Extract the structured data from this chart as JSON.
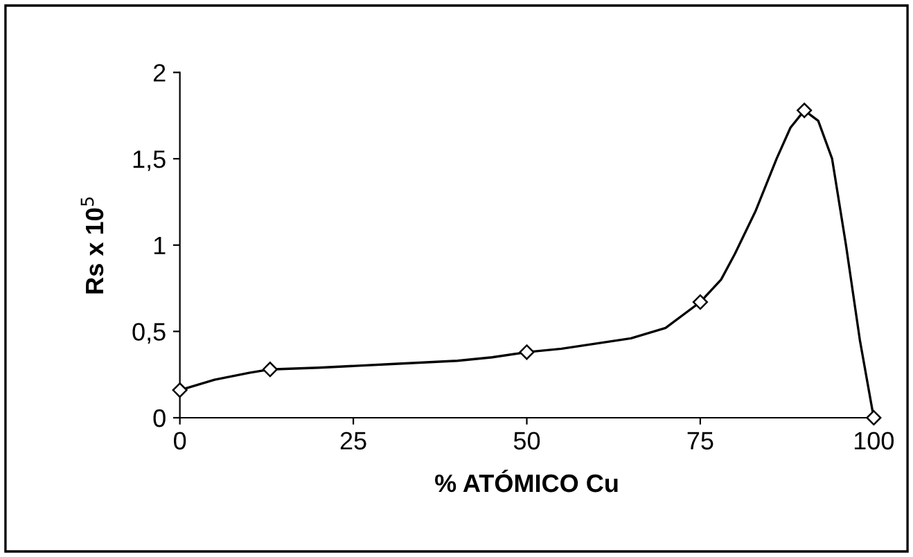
{
  "chart_data": {
    "type": "line",
    "xlabel": "% ATÓMICO Cu",
    "ylabel": "Rs x 10$^{5}$",
    "series": [
      {
        "color": "#000000",
        "marker": "none",
        "x": [
          0,
          5,
          10,
          13,
          20,
          30,
          40,
          45,
          50,
          55,
          60,
          65,
          70,
          75,
          78,
          80,
          83,
          86,
          88,
          90,
          92,
          94,
          96,
          98,
          100
        ],
        "values": [
          0.16,
          0.22,
          0.26,
          0.28,
          0.29,
          0.31,
          0.33,
          0.35,
          0.38,
          0.4,
          0.43,
          0.46,
          0.52,
          0.67,
          0.8,
          0.95,
          1.2,
          1.5,
          1.68,
          1.78,
          1.72,
          1.5,
          1.0,
          0.45,
          0
        ]
      },
      {
        "type": "scatter",
        "marker": "diamond",
        "color": "#000000",
        "x": [
          0,
          13,
          50,
          75,
          90,
          100
        ],
        "values": [
          0.16,
          0.28,
          0.38,
          0.67,
          1.78,
          0
        ]
      }
    ],
    "xlim": [
      0,
      100
    ],
    "xticks": [
      0,
      25,
      50,
      75,
      100
    ],
    "ylim": [
      0,
      2
    ],
    "yticks": [
      0,
      {
        "value": 0.5,
        "label": "0,5"
      },
      1,
      {
        "value": 1.5,
        "label": "1,5"
      },
      2
    ],
    "grid": false,
    "legend": false,
    "line_style": "solid"
  }
}
